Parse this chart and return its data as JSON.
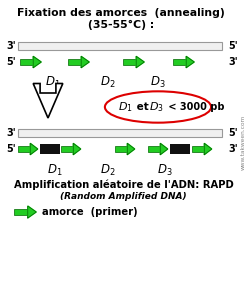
{
  "title1": "Fixation des amorces  (annealing)",
  "title2": "(35-55°C) :",
  "background_color": "#ffffff",
  "text_color": "#000000",
  "arrow_facecolor": "#22cc22",
  "arrow_edgecolor": "#006600",
  "dna_bar_facecolor": "#f0f0f0",
  "dna_bar_edgecolor": "#999999",
  "black_block_color": "#111111",
  "ellipse_edgecolor": "#dd0000",
  "watermark": "www.takween.com",
  "label_bottom1": "Amplification aléatoire de l'ADN: RAPD",
  "label_bottom2": "(Random Amplified DNA)",
  "label_legend": "amorce  (primer)",
  "figwidth": 2.47,
  "figheight": 2.85,
  "dpi": 100
}
